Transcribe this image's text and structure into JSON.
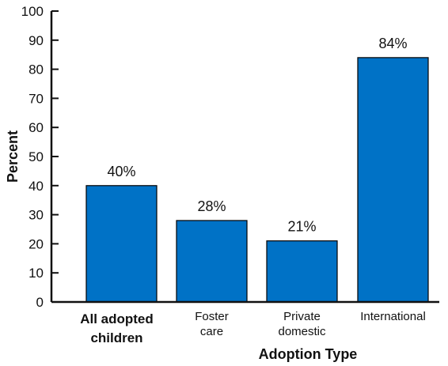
{
  "chart_data": {
    "type": "bar",
    "title": "",
    "xlabel": "Adoption Type",
    "ylabel": "Percent",
    "ylim": [
      0,
      100
    ],
    "yticks": [
      0,
      10,
      20,
      30,
      40,
      50,
      60,
      70,
      80,
      90,
      100
    ],
    "grid": false,
    "categories": [
      {
        "lines": [
          "All adopted",
          "children"
        ],
        "bold": true
      },
      {
        "lines": [
          "Foster",
          "care"
        ],
        "bold": false
      },
      {
        "lines": [
          "Private",
          "domestic"
        ],
        "bold": false
      },
      {
        "lines": [
          "International"
        ],
        "bold": false
      }
    ],
    "values": [
      40,
      28,
      21,
      84
    ],
    "data_labels": [
      "40%",
      "28%",
      "21%",
      "84%"
    ],
    "bar_color": "#0072c6",
    "bar_edge_color": "#000000"
  }
}
